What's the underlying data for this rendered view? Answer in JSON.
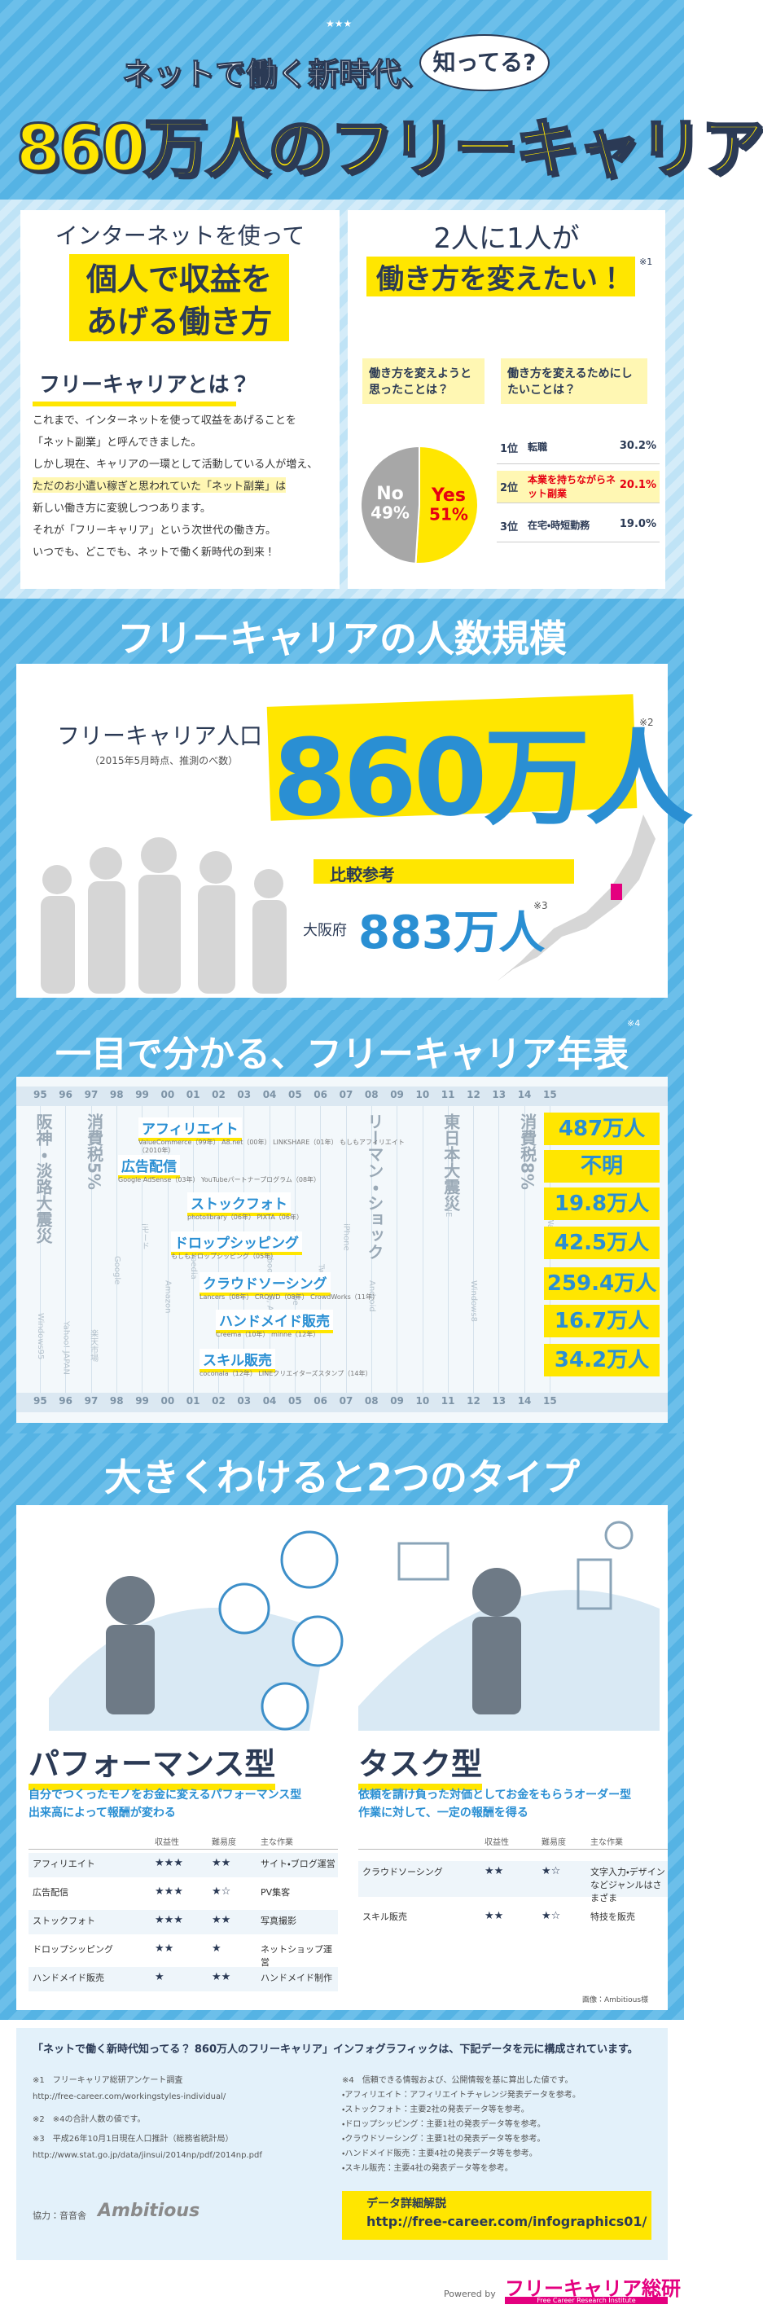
{
  "header": {
    "stars": "★★★",
    "title_line1": "ネットで働く新時代、",
    "bubble": "知ってる?",
    "title_main": "860万人のフリーキャリア"
  },
  "intro": {
    "heading_lines": [
      "インターネットを使って",
      "個人で収益を",
      "あげる働き方"
    ],
    "subheading": "フリーキャリアとは？",
    "body": [
      "これまで、インターネットを使って収益をあげることを",
      "「ネット副業」と呼んできました。",
      "しかし現在、キャリアの一環として活動している人が増え、",
      "ただのお小遣い稼ぎと思われていた「ネット副業」は",
      "新しい働き方に変貌しつつあります。",
      "それが「フリーキャリア」という次世代の働き方。",
      "いつでも、どこでも、ネットで働く新時代の到来！"
    ]
  },
  "survey": {
    "heading_lines": [
      "2人に1人が",
      "働き方を変えたい！"
    ],
    "note": "※1",
    "question1": "働き方を変えようと思ったことは？",
    "pie": [
      {
        "label": "No",
        "value": 49,
        "value_label": "49%",
        "color": "#a7a7a7"
      },
      {
        "label": "Yes",
        "value": 51,
        "value_label": "51%",
        "color": "#ffe600"
      }
    ],
    "question2": "働き方を変えるためにしたいことは？",
    "ranking": [
      {
        "rank": "1位",
        "item": "転職",
        "pct": "30.2%"
      },
      {
        "rank": "2位",
        "item": "本業を持ちながらネット副業",
        "pct": "20.1%"
      },
      {
        "rank": "3位",
        "item": "在宅・時短勤務",
        "pct": "19.0%"
      }
    ]
  },
  "scale": {
    "heading": "フリーキャリアの人数規模",
    "label": "フリーキャリア人口",
    "sublabel": "（2015年5月時点、推測のべ数）",
    "value": "860万人",
    "note": "※2",
    "compare": "比較参考",
    "osaka_label": "大阪府",
    "osaka_value": "883万人",
    "osaka_note": "※3"
  },
  "timeline": {
    "heading": "一目で分かる、フリーキャリア年表",
    "note": "※4",
    "years": [
      "95",
      "96",
      "97",
      "98",
      "99",
      "00",
      "01",
      "02",
      "03",
      "04",
      "05",
      "06",
      "07",
      "08",
      "09",
      "10",
      "11",
      "12",
      "13",
      "14",
      "15"
    ],
    "events": [
      "阪神・淡路大震災",
      "消費税5%",
      "リーマン・ショック",
      "東日本大震災",
      "消費税8%",
      "Windows95",
      "Yahoo! JAPAN",
      "楽天市場",
      "iモード",
      "Amazon",
      "Google",
      "Wikipedia",
      "Facebook, mixi, Ameba",
      "YouTube",
      "Twitter",
      "iPhone",
      "Android",
      "LINE",
      "Windows8",
      "Apple Watch"
    ],
    "categories": [
      {
        "name": "アフィリエイト",
        "services": "ValueCommerce（99年） A8.net（00年） LINKSHARE（01年） もしもアフィリエイト（2010年）",
        "count": "487万人"
      },
      {
        "name": "広告配信",
        "services": "Google AdSense（03年） YouTubeパートナープログラム（08年）",
        "count": "不明"
      },
      {
        "name": "ストックフォト",
        "services": "photolibrary（06年） PIXTA（06年）",
        "count": "19.8万人"
      },
      {
        "name": "ドロップシッピング",
        "services": "もしもドロップシッピング（05年）",
        "count": "42.5万人"
      },
      {
        "name": "クラウドソーシング",
        "services": "Lancers（08年） CROWD（08年） CrowdWorks（11年）",
        "count": "259.4万人"
      },
      {
        "name": "ハンドメイド販売",
        "services": "Creema（10年） minne（12年）",
        "count": "16.7万人"
      },
      {
        "name": "スキル販売",
        "services": "coconala（12年） LINEクリエイターズスタンプ（14年）",
        "count": "34.2万人"
      }
    ]
  },
  "types": {
    "heading": "大きくわけると2つのタイプ",
    "credit": "画像：Ambitious様",
    "groups": [
      {
        "name": "パフォーマンス型",
        "desc": [
          "自分でつくったモノをお金に変えるパフォーマンス型",
          "出来高によって報酬が変わる"
        ],
        "columns": [
          "収益性",
          "難易度",
          "主な作業"
        ],
        "rows": [
          [
            "アフィリエイト",
            "★★★",
            "★★",
            "サイト・ブログ運営"
          ],
          [
            "広告配信",
            "★★★",
            "★☆",
            "PV集客"
          ],
          [
            "ストックフォト",
            "★★★",
            "★★",
            "写真撮影"
          ],
          [
            "ドロップシッピング",
            "★★",
            "★",
            "ネットショップ運営"
          ],
          [
            "ハンドメイド販売",
            "★",
            "★★",
            "ハンドメイド制作"
          ]
        ]
      },
      {
        "name": "タスク型",
        "desc": [
          "依頼を請け負った対価としてお金をもらうオーダー型",
          "作業に対して、一定の報酬を得る"
        ],
        "columns": [
          "収益性",
          "難易度",
          "主な作業"
        ],
        "rows": [
          [
            "クラウドソーシング",
            "★★",
            "★☆",
            "文字入力・デザインなどジャンルはさまざま"
          ],
          [
            "スキル販売",
            "★★",
            "★☆",
            "特技を販売"
          ]
        ]
      }
    ]
  },
  "footer": {
    "title": "「ネットで働く新時代知ってる？ 860万人のフリーキャリア」インフォグラフィックは、下記データを元に構成されています。",
    "left_notes": [
      "※1　フリーキャリア総研アンケート調査",
      "http://free-career.com/workingstyles-individual/",
      "※2　※4の合計人数の値です。",
      "※3　平成26年10月1日現在人口推計（総務省統計局）",
      "http://www.stat.go.jp/data/jinsui/2014np/pdf/2014np.pdf"
    ],
    "right_notes": [
      "※4　信頼できる情報および、公開情報を基に算出した値です。",
      "・アフィリエイト：アフィリエイトチャレンジ発表データを参考。",
      "・ストックフォト：主要2社の発表データ等を参考。",
      "・ドロップシッピング：主要1社の発表データ等を参考。",
      "・クラウドソーシング：主要1社の発表データ等を参考。",
      "・ハンドメイド販売：主要4社の発表データ等を参考。",
      "・スキル販売：主要4社の発表データ等を参考。"
    ],
    "cooperation": "協力：音音舎",
    "partner": "Ambitious",
    "link_label": "データ詳細解説",
    "link_url": "http://free-career.com/infographics01/",
    "powered": "Powered by",
    "brand": "フリーキャリア総研",
    "brand_sub": "Free Career Research Institute"
  }
}
